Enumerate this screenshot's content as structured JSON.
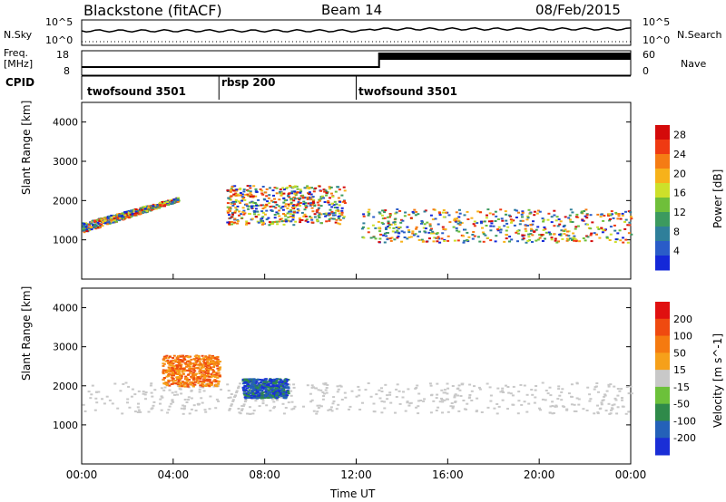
{
  "header": {
    "title": "Blackstone (fitACF)",
    "beam": "Beam 14",
    "date": "08/Feb/2015"
  },
  "params": {
    "nsky_label": "N.Sky",
    "nsearch_label": "N.Search",
    "freq_label": "Freq.",
    "freq_unit": "[MHz]",
    "nave_label": "Nave",
    "cpid_label": "CPID",
    "noise_ticks": [
      "10^5",
      "10^0"
    ],
    "noise_ticks_right": [
      "10^5",
      "10^0"
    ],
    "freq_ticks": [
      "18",
      "8"
    ],
    "nave_ticks": [
      "60",
      "0"
    ]
  },
  "cpid_segments": [
    {
      "label": "twofsound 3501",
      "start_hour": 0
    },
    {
      "label": "rbsp 200",
      "start_hour": 6
    },
    {
      "label": "twofsound 3501",
      "start_hour": 12
    }
  ],
  "chart_data": [
    {
      "type": "heatmap",
      "panel": "power",
      "ylabel": "Slant Range [km]",
      "ylim": [
        0,
        4500
      ],
      "yticks": [
        1000,
        2000,
        3000,
        4000
      ],
      "xlim": [
        0,
        24
      ],
      "colorbar": {
        "label": "Power [dB]",
        "ticks": [
          4,
          8,
          12,
          16,
          20,
          24,
          28
        ],
        "range": [
          0,
          30
        ],
        "colors": [
          "#1428d8",
          "#2a5cc8",
          "#2f7f9a",
          "#3c9a5f",
          "#6fbf3a",
          "#cde02a",
          "#f7b21a",
          "#f57c14",
          "#ef3a12",
          "#d40a0a"
        ]
      },
      "bands": [
        {
          "name": "early-echo",
          "x": [
            0,
            4.2
          ],
          "range_start": [
            1200,
            1450
          ],
          "range_end": [
            2000,
            2100
          ]
        },
        {
          "name": "rbsp-echo",
          "x": [
            6.3,
            11.5
          ],
          "range": [
            1400,
            2400
          ]
        },
        {
          "name": "late-echo",
          "x": [
            12.2,
            24
          ],
          "range": [
            950,
            1800
          ]
        }
      ]
    },
    {
      "type": "heatmap",
      "panel": "velocity",
      "ylabel": "Slant Range [km]",
      "xlabel": "Time UT",
      "ylim": [
        0,
        4500
      ],
      "yticks": [
        1000,
        2000,
        3000,
        4000
      ],
      "xlim": [
        0,
        24
      ],
      "xticks": [
        "00:00",
        "04:00",
        "08:00",
        "12:00",
        "16:00",
        "20:00",
        "00:00"
      ],
      "colorbar": {
        "label": "Velocity [m s^-1]",
        "ticks": [
          200,
          100,
          50,
          15,
          -15,
          -50,
          -100,
          -200
        ],
        "colors": [
          "#1a2ed6",
          "#2461b8",
          "#2f8a4a",
          "#6cc13a",
          "#c8c8c8",
          "#f6a01a",
          "#f57a10",
          "#ef4a10",
          "#e01010"
        ]
      },
      "bands": [
        {
          "name": "ground-scatter",
          "x": [
            0,
            24
          ],
          "range": [
            1300,
            2100
          ]
        },
        {
          "name": "blue-flow",
          "x": [
            7.0,
            9.0
          ],
          "range": [
            1700,
            2200
          ]
        },
        {
          "name": "orange-flow",
          "x": [
            3.5,
            6.0
          ],
          "range": [
            2000,
            2800
          ]
        }
      ]
    }
  ]
}
